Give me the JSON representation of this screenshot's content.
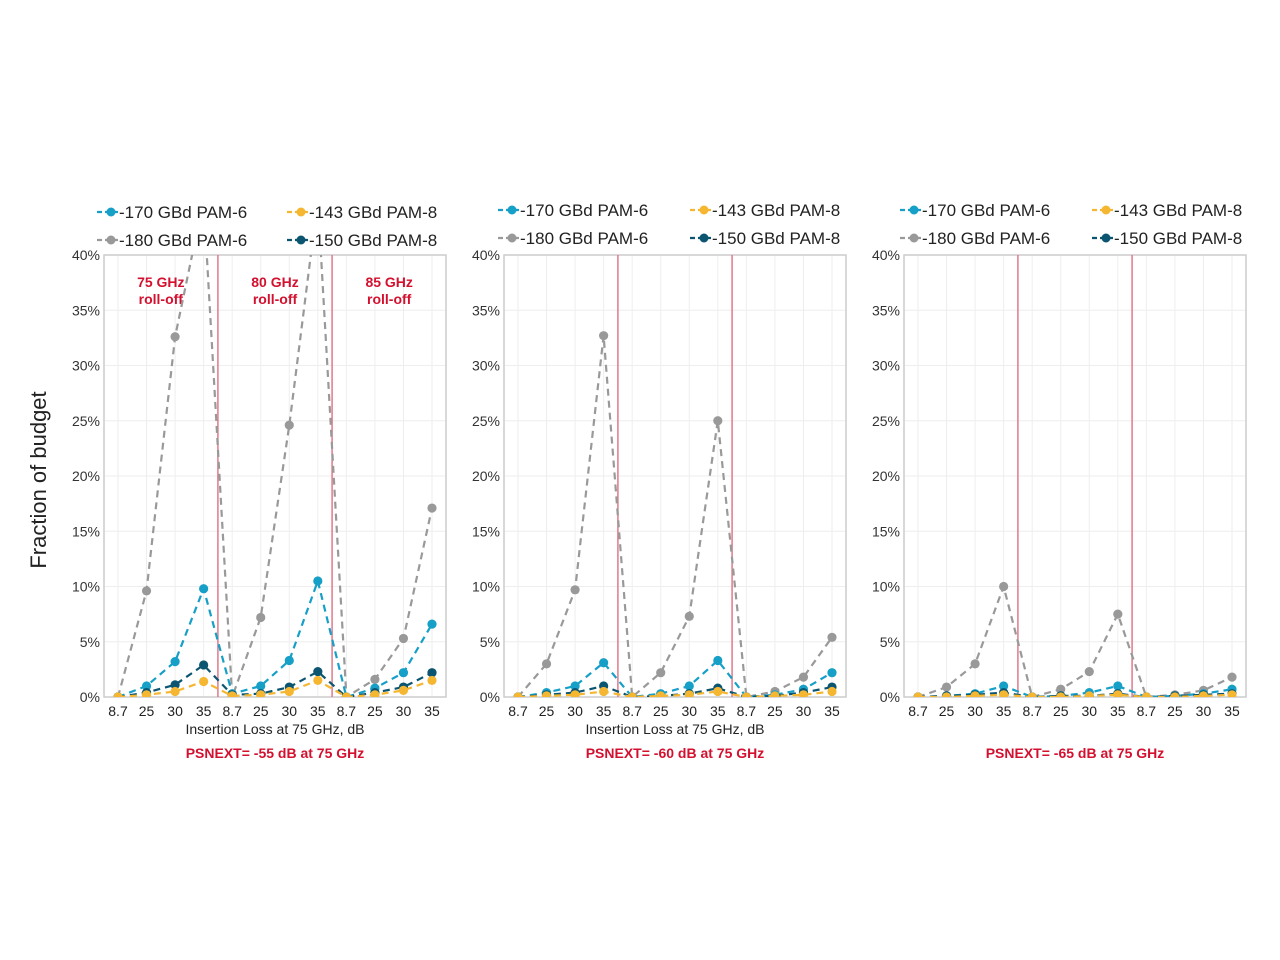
{
  "ylabel": "Fraction of budget",
  "colors": {
    "s170_pam6": "#169fc7",
    "s143_pam8": "#f5b731",
    "s180_pam6": "#999999",
    "s150_pam8": "#0b5570",
    "divider": "#e07a8a",
    "annotation": "#d4102f",
    "grid": "#eeeeee",
    "frame": "#cccccc"
  },
  "chart_data": [
    {
      "type": "line",
      "title": "",
      "xlabel": "Insertion Loss at 75 GHz, dB",
      "caption": "PSNEXT= -55 dB at 75 GHz",
      "x": [
        "8.7",
        "25",
        "30",
        "35",
        "8.7",
        "25",
        "30",
        "35",
        "8.7",
        "25",
        "30",
        "35"
      ],
      "yticks": [
        "0%",
        "5%",
        "10%",
        "15%",
        "20%",
        "25%",
        "30%",
        "35%",
        "40%"
      ],
      "ylim": [
        0,
        40
      ],
      "grid": true,
      "legend": "top",
      "groups": [
        "75 GHz\nroll-off",
        "80 GHz\nroll-off",
        "85 GHz\nroll-off"
      ],
      "series": [
        {
          "name": "-180 GBd PAM-6",
          "values": [
            0,
            9.6,
            32.6,
            45,
            0,
            7.2,
            24.6,
            45,
            0,
            1.6,
            5.3,
            17.1
          ]
        },
        {
          "name": "-170 GBd PAM-6",
          "values": [
            0,
            1.0,
            3.2,
            9.8,
            0.3,
            1.0,
            3.3,
            10.5,
            0,
            0.8,
            2.2,
            6.6
          ]
        },
        {
          "name": "-150 GBd PAM-8",
          "values": [
            0,
            0.4,
            1.1,
            2.9,
            0.2,
            0.3,
            0.9,
            2.3,
            0,
            0.4,
            0.9,
            2.2
          ]
        },
        {
          "name": "-143 GBd PAM-8",
          "values": [
            0,
            0.2,
            0.5,
            1.4,
            0.1,
            0.2,
            0.5,
            1.5,
            0,
            0.2,
            0.6,
            1.5
          ]
        }
      ]
    },
    {
      "type": "line",
      "title": "",
      "xlabel": "Insertion Loss at 75 GHz, dB",
      "caption": "PSNEXT= -60 dB at 75 GHz",
      "x": [
        "8.7",
        "25",
        "30",
        "35",
        "8.7",
        "25",
        "30",
        "35",
        "8.7",
        "25",
        "30",
        "35"
      ],
      "yticks": [
        "0%",
        "5%",
        "10%",
        "15%",
        "20%",
        "25%",
        "30%",
        "35%",
        "40%"
      ],
      "ylim": [
        0,
        40
      ],
      "grid": true,
      "legend": "top",
      "groups": [
        "",
        "",
        ""
      ],
      "series": [
        {
          "name": "-180 GBd PAM-6",
          "values": [
            0,
            3.0,
            9.7,
            32.7,
            0,
            2.2,
            7.3,
            25.0,
            0,
            0.5,
            1.8,
            5.4
          ]
        },
        {
          "name": "-170 GBd PAM-6",
          "values": [
            0,
            0.4,
            1.0,
            3.1,
            0,
            0.3,
            1.0,
            3.3,
            0,
            0.2,
            0.7,
            2.2
          ]
        },
        {
          "name": "-150 GBd PAM-8",
          "values": [
            0,
            0.2,
            0.4,
            1.0,
            0,
            0.1,
            0.3,
            0.8,
            0,
            0.1,
            0.4,
            0.9
          ]
        },
        {
          "name": "-143 GBd PAM-8",
          "values": [
            0,
            0.1,
            0.2,
            0.5,
            0,
            0.1,
            0.2,
            0.5,
            0,
            0.1,
            0.2,
            0.5
          ]
        }
      ]
    },
    {
      "type": "line",
      "title": "",
      "xlabel": "",
      "caption": "PSNEXT= -65 dB at 75 GHz",
      "x": [
        "8.7",
        "25",
        "30",
        "35",
        "8.7",
        "25",
        "30",
        "35",
        "8.7",
        "25",
        "30",
        "35"
      ],
      "yticks": [
        "0%",
        "5%",
        "10%",
        "15%",
        "20%",
        "25%",
        "30%",
        "35%",
        "40%"
      ],
      "ylim": [
        0,
        40
      ],
      "grid": true,
      "legend": "top",
      "groups": [
        "",
        "",
        ""
      ],
      "series": [
        {
          "name": "-180 GBd PAM-6",
          "values": [
            0,
            0.9,
            3.0,
            10.0,
            0,
            0.7,
            2.3,
            7.5,
            0,
            0.2,
            0.6,
            1.8
          ]
        },
        {
          "name": "-170 GBd PAM-6",
          "values": [
            0,
            0.1,
            0.3,
            1.0,
            0,
            0.1,
            0.4,
            1.0,
            0,
            0.1,
            0.3,
            0.7
          ]
        },
        {
          "name": "-150 GBd PAM-8",
          "values": [
            0,
            0.1,
            0.2,
            0.4,
            0,
            0.1,
            0.1,
            0.3,
            0,
            0.1,
            0.2,
            0.3
          ]
        },
        {
          "name": "-143 GBd PAM-8",
          "values": [
            0,
            0,
            0.1,
            0.2,
            0,
            0,
            0.1,
            0.2,
            0,
            0,
            0.1,
            0.2
          ]
        }
      ]
    }
  ]
}
